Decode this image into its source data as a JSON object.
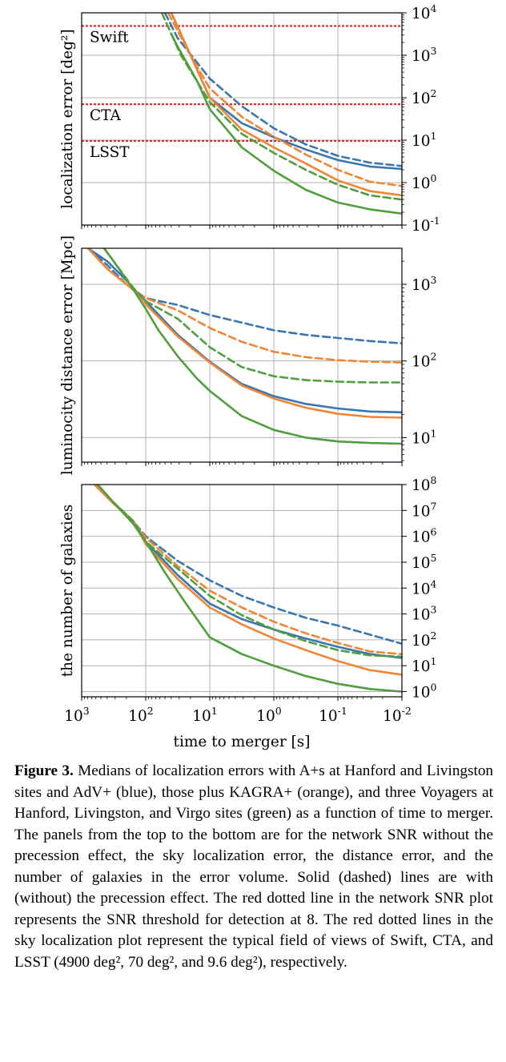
{
  "chart_data": [
    {
      "type": "line",
      "panel": "top",
      "ylabel": "localization error [deg²]",
      "yscale": "log",
      "ylim_exp": [
        -1,
        4
      ],
      "ytick_labels": [
        {
          "exp": 4,
          "label": "10",
          "sup": "4"
        },
        {
          "exp": 3,
          "label": "10",
          "sup": "3"
        },
        {
          "exp": 2,
          "label": "10",
          "sup": "2"
        },
        {
          "exp": 1,
          "label": "10",
          "sup": "1"
        },
        {
          "exp": 0,
          "label": "10",
          "sup": "0"
        },
        {
          "exp": -1,
          "label": "10",
          "sup": "-1"
        }
      ],
      "grid": true,
      "thresholds": [
        {
          "label": "Swift",
          "value": 4900,
          "color": "#d62728"
        },
        {
          "label": "CTA",
          "value": 70,
          "color": "#d62728"
        },
        {
          "label": "LSST",
          "value": 9.6,
          "color": "#d62728"
        }
      ],
      "series": [
        {
          "color": "#3a76af",
          "dash": false,
          "points": [
            [
              1.6,
              4
            ],
            [
              1.3,
              3
            ],
            [
              1.0,
              2
            ],
            [
              0.5,
              1.4
            ],
            [
              0,
              1.07
            ],
            [
              -0.5,
              0.78
            ],
            [
              -1,
              0.53
            ],
            [
              -1.5,
              0.38
            ],
            [
              -2,
              0.32
            ]
          ]
        },
        {
          "color": "#3a76af",
          "dash": true,
          "points": [
            [
              1.7,
              4
            ],
            [
              1.5,
              3.4
            ],
            [
              1.0,
              2.45
            ],
            [
              0.5,
              1.8
            ],
            [
              0,
              1.28
            ],
            [
              -0.5,
              0.9
            ],
            [
              -1,
              0.63
            ],
            [
              -1.5,
              0.47
            ],
            [
              -2,
              0.39
            ]
          ]
        },
        {
          "color": "#ef8636",
          "dash": false,
          "points": [
            [
              1.6,
              4
            ],
            [
              1.3,
              3.0
            ],
            [
              1.0,
              2.0
            ],
            [
              0.5,
              1.25
            ],
            [
              0,
              0.83
            ],
            [
              -0.5,
              0.45
            ],
            [
              -1,
              0.05
            ],
            [
              -1.5,
              -0.2
            ],
            [
              -2,
              -0.3
            ]
          ]
        },
        {
          "color": "#ef8636",
          "dash": true,
          "points": [
            [
              1.65,
              4
            ],
            [
              1.3,
              3.0
            ],
            [
              1.0,
              2.22
            ],
            [
              0.5,
              1.55
            ],
            [
              0,
              1.08
            ],
            [
              -0.5,
              0.66
            ],
            [
              -1,
              0.3
            ],
            [
              -1.5,
              0.02
            ],
            [
              -2,
              -0.08
            ]
          ]
        },
        {
          "color": "#519e3e",
          "dash": false,
          "points": [
            [
              1.6,
              3.5
            ],
            [
              1.5,
              3.2
            ],
            [
              1.2,
              2.4
            ],
            [
              1.0,
              1.73
            ],
            [
              0.5,
              0.83
            ],
            [
              0,
              0.28
            ],
            [
              -0.5,
              -0.17
            ],
            [
              -1,
              -0.47
            ],
            [
              -1.5,
              -0.63
            ],
            [
              -2,
              -0.73
            ]
          ]
        },
        {
          "color": "#519e3e",
          "dash": true,
          "points": [
            [
              1.75,
              4
            ],
            [
              1.45,
              3
            ],
            [
              1.0,
              1.9
            ],
            [
              0.5,
              1.15
            ],
            [
              0,
              0.7
            ],
            [
              -0.5,
              0.3
            ],
            [
              -1,
              -0.05
            ],
            [
              -1.5,
              -0.3
            ],
            [
              -2,
              -0.4
            ]
          ]
        }
      ]
    },
    {
      "type": "line",
      "panel": "middle",
      "ylabel": "luminocity distance error [Mpc]",
      "yscale": "log",
      "ylim_exp": [
        0.68,
        3.47
      ],
      "ytick_labels": [
        {
          "exp": 3,
          "label": "10",
          "sup": "3"
        },
        {
          "exp": 2,
          "label": "10",
          "sup": "2"
        },
        {
          "exp": 1,
          "label": "10",
          "sup": "1"
        }
      ],
      "grid": true,
      "series": [
        {
          "color": "#3a76af",
          "dash": false,
          "points": [
            [
              2.9,
              3.47
            ],
            [
              2.6,
              3.3
            ],
            [
              2.3,
              3.05
            ],
            [
              2.1,
              2.86
            ],
            [
              2,
              2.78
            ],
            [
              1.5,
              2.34
            ],
            [
              1,
              1.99
            ],
            [
              0.5,
              1.7
            ],
            [
              0,
              1.54
            ],
            [
              -0.5,
              1.44
            ],
            [
              -1,
              1.38
            ],
            [
              -1.5,
              1.34
            ],
            [
              -2,
              1.33
            ]
          ]
        },
        {
          "color": "#3a76af",
          "dash": true,
          "points": [
            [
              2.9,
              3.47
            ],
            [
              2.6,
              3.25
            ],
            [
              2.3,
              3.0
            ],
            [
              2.1,
              2.88
            ],
            [
              2,
              2.82
            ],
            [
              1.5,
              2.73
            ],
            [
              1,
              2.6
            ],
            [
              0.5,
              2.5
            ],
            [
              0,
              2.4
            ],
            [
              -0.5,
              2.34
            ],
            [
              -1,
              2.3
            ],
            [
              -1.5,
              2.26
            ],
            [
              -2,
              2.23
            ]
          ]
        },
        {
          "color": "#ef8636",
          "dash": false,
          "points": [
            [
              2.9,
              3.47
            ],
            [
              2.6,
              3.2
            ],
            [
              2.3,
              3.0
            ],
            [
              2.1,
              2.86
            ],
            [
              2,
              2.74
            ],
            [
              1.5,
              2.32
            ],
            [
              1,
              1.98
            ],
            [
              0.5,
              1.68
            ],
            [
              0,
              1.51
            ],
            [
              -0.5,
              1.39
            ],
            [
              -1,
              1.31
            ],
            [
              -1.5,
              1.27
            ],
            [
              -2,
              1.26
            ]
          ]
        },
        {
          "color": "#ef8636",
          "dash": true,
          "points": [
            [
              2.9,
              3.47
            ],
            [
              2.6,
              3.2
            ],
            [
              2.3,
              3.0
            ],
            [
              2.1,
              2.88
            ],
            [
              2,
              2.82
            ],
            [
              1.5,
              2.66
            ],
            [
              1,
              2.43
            ],
            [
              0.5,
              2.25
            ],
            [
              0,
              2.12
            ],
            [
              -0.5,
              2.05
            ],
            [
              -1,
              2.01
            ],
            [
              -1.5,
              1.99
            ],
            [
              -2,
              1.98
            ]
          ]
        },
        {
          "color": "#519e3e",
          "dash": false,
          "points": [
            [
              2.65,
              3.47
            ],
            [
              2.5,
              3.3
            ],
            [
              2.2,
              2.94
            ],
            [
              2,
              2.68
            ],
            [
              1.8,
              2.4
            ],
            [
              1.5,
              2.06
            ],
            [
              1.2,
              1.77
            ],
            [
              1,
              1.61
            ],
            [
              0.5,
              1.28
            ],
            [
              0,
              1.1
            ],
            [
              -0.5,
              1.0
            ],
            [
              -1,
              0.95
            ],
            [
              -1.5,
              0.93
            ],
            [
              -2,
              0.92
            ]
          ]
        },
        {
          "color": "#519e3e",
          "dash": true,
          "points": [
            [
              2.65,
              3.47
            ],
            [
              2.5,
              3.3
            ],
            [
              2.2,
              2.96
            ],
            [
              2,
              2.78
            ],
            [
              1.5,
              2.55
            ],
            [
              1,
              2.18
            ],
            [
              0.5,
              1.92
            ],
            [
              0,
              1.8
            ],
            [
              -0.5,
              1.75
            ],
            [
              -1,
              1.73
            ],
            [
              -1.5,
              1.72
            ],
            [
              -2,
              1.72
            ]
          ]
        }
      ]
    },
    {
      "type": "line",
      "panel": "bottom",
      "xlabel": "time to merger [s]",
      "ylabel": "the number of galaxies",
      "xscale": "log",
      "yscale": "log",
      "x_inverted": true,
      "xlim_exp": [
        3,
        -2
      ],
      "ylim_exp": [
        -0.2,
        8
      ],
      "xtick_labels": [
        {
          "exp": 3,
          "label": "10",
          "sup": "3"
        },
        {
          "exp": 2,
          "label": "10",
          "sup": "2"
        },
        {
          "exp": 1,
          "label": "10",
          "sup": "1"
        },
        {
          "exp": 0,
          "label": "10",
          "sup": "0"
        },
        {
          "exp": -1,
          "label": "10",
          "sup": "-1"
        },
        {
          "exp": -2,
          "label": "10",
          "sup": "-2"
        }
      ],
      "ytick_labels": [
        {
          "exp": 8,
          "label": "10",
          "sup": "8"
        },
        {
          "exp": 7,
          "label": "10",
          "sup": "7"
        },
        {
          "exp": 6,
          "label": "10",
          "sup": "6"
        },
        {
          "exp": 5,
          "label": "10",
          "sup": "5"
        },
        {
          "exp": 4,
          "label": "10",
          "sup": "4"
        },
        {
          "exp": 3,
          "label": "10",
          "sup": "3"
        },
        {
          "exp": 2,
          "label": "10",
          "sup": "2"
        },
        {
          "exp": 1,
          "label": "10",
          "sup": "1"
        },
        {
          "exp": 0,
          "label": "10",
          "sup": "0"
        }
      ],
      "grid": true,
      "series": [
        {
          "color": "#3a76af",
          "dash": false,
          "points": [
            [
              2.78,
              8
            ],
            [
              2.5,
              7.3
            ],
            [
              2.2,
              6.6
            ],
            [
              2,
              5.8
            ],
            [
              1.5,
              4.5
            ],
            [
              1,
              3.4
            ],
            [
              0.5,
              2.8
            ],
            [
              0,
              2.4
            ],
            [
              -0.5,
              2.05
            ],
            [
              -1,
              1.73
            ],
            [
              -1.5,
              1.45
            ],
            [
              -2,
              1.3
            ]
          ]
        },
        {
          "color": "#3a76af",
          "dash": true,
          "points": [
            [
              2.78,
              8
            ],
            [
              2.5,
              7.3
            ],
            [
              2.2,
              6.6
            ],
            [
              2,
              6.0
            ],
            [
              1.5,
              5.05
            ],
            [
              1,
              4.3
            ],
            [
              0.5,
              3.7
            ],
            [
              0,
              3.25
            ],
            [
              -0.5,
              2.85
            ],
            [
              -1,
              2.55
            ],
            [
              -1.5,
              2.2
            ],
            [
              -2,
              1.85
            ]
          ]
        },
        {
          "color": "#ef8636",
          "dash": false,
          "points": [
            [
              2.8,
              8
            ],
            [
              2.5,
              7.25
            ],
            [
              2.2,
              6.6
            ],
            [
              2,
              5.7
            ],
            [
              1.5,
              4.35
            ],
            [
              1,
              3.25
            ],
            [
              0.5,
              2.6
            ],
            [
              0,
              2.05
            ],
            [
              -0.5,
              1.6
            ],
            [
              -1,
              1.18
            ],
            [
              -1.5,
              0.83
            ],
            [
              -2,
              0.65
            ]
          ]
        },
        {
          "color": "#ef8636",
          "dash": true,
          "points": [
            [
              2.8,
              8
            ],
            [
              2.5,
              7.3
            ],
            [
              2.2,
              6.6
            ],
            [
              2,
              5.95
            ],
            [
              1.5,
              4.85
            ],
            [
              1,
              3.9
            ],
            [
              0.5,
              3.25
            ],
            [
              0,
              2.7
            ],
            [
              -0.5,
              2.25
            ],
            [
              -1,
              1.88
            ],
            [
              -1.5,
              1.55
            ],
            [
              -2,
              1.45
            ]
          ]
        },
        {
          "color": "#519e3e",
          "dash": false,
          "points": [
            [
              2.75,
              8
            ],
            [
              2.5,
              7.3
            ],
            [
              2.2,
              6.5
            ],
            [
              2,
              5.8
            ],
            [
              1.7,
              4.6
            ],
            [
              1.4,
              3.5
            ],
            [
              1,
              2.1
            ],
            [
              0.5,
              1.45
            ],
            [
              0,
              1.0
            ],
            [
              -0.5,
              0.6
            ],
            [
              -1,
              0.3
            ],
            [
              -1.5,
              0.1
            ],
            [
              -2,
              0.0
            ]
          ]
        },
        {
          "color": "#519e3e",
          "dash": true,
          "points": [
            [
              2.75,
              8
            ],
            [
              2.5,
              7.3
            ],
            [
              2.2,
              6.6
            ],
            [
              2,
              5.8
            ],
            [
              1.5,
              4.75
            ],
            [
              1,
              3.7
            ],
            [
              0.5,
              2.95
            ],
            [
              0,
              2.4
            ],
            [
              -0.5,
              1.95
            ],
            [
              -1,
              1.6
            ],
            [
              -1.5,
              1.4
            ],
            [
              -2,
              1.35
            ]
          ]
        }
      ]
    }
  ],
  "caption": {
    "label": "Figure 3.",
    "text": "Medians of localization errors with A+s at Hanford and Livingston sites and AdV+ (blue), those plus KAGRA+ (orange), and three Voyagers at Hanford, Livingston, and Virgo sites (green) as a function of time to merger. The panels from the top to the bottom are for the network SNR without the precession effect, the sky localization error, the distance error, and the number of galaxies in the error volume. Solid (dashed) lines are with (without) the precession effect. The red dotted line in the network SNR plot represents the SNR threshold for detection at 8. The red dotted lines in the sky localization plot represent the typical field of views of Swift, CTA, and LSST (4900 deg², 70 deg², and 9.6 deg²), respectively."
  }
}
